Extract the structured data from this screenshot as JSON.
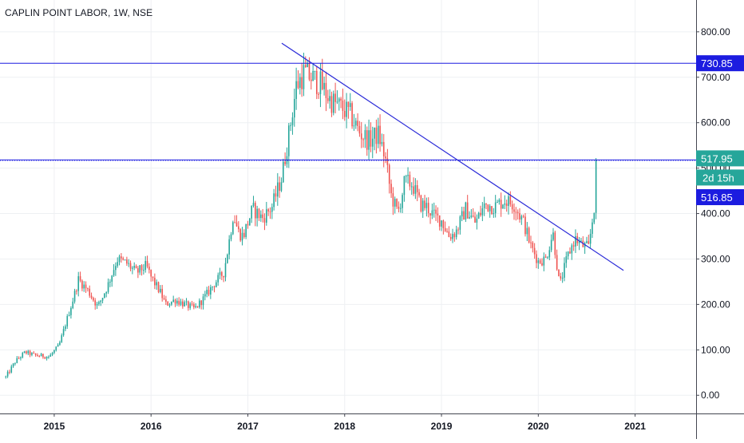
{
  "header": {
    "title": "CAPLIN POINT LABOR, 1W, NSE"
  },
  "colors": {
    "up": "#26a69a",
    "down": "#ef5350",
    "hline": "#1c1ce0",
    "trendline": "#2a2ad8",
    "grid": "#eef0f3",
    "axis_text": "#131722"
  },
  "chart_data": {
    "type": "candlestick",
    "symbol": "CAPLIN POINT LABOR",
    "interval": "1W",
    "exchange": "NSE",
    "x_ticks": [
      "2015",
      "2016",
      "2017",
      "2018",
      "2019",
      "2020",
      "2021"
    ],
    "x_range": [
      2014.44,
      2021.63
    ],
    "y_ticks": [
      "0.00",
      "100.00",
      "200.00",
      "300.00",
      "400.00",
      "500.00",
      "600.00",
      "700.00",
      "800.00"
    ],
    "y_range": [
      -40,
      870
    ],
    "grid": true,
    "anchors": [
      [
        2014.5,
        40
      ],
      [
        2014.6,
        75
      ],
      [
        2014.7,
        95
      ],
      [
        2014.8,
        88
      ],
      [
        2014.95,
        85
      ],
      [
        2015.05,
        110
      ],
      [
        2015.2,
        215
      ],
      [
        2015.25,
        255
      ],
      [
        2015.35,
        230
      ],
      [
        2015.45,
        195
      ],
      [
        2015.55,
        240
      ],
      [
        2015.65,
        300
      ],
      [
        2015.75,
        290
      ],
      [
        2015.85,
        270
      ],
      [
        2015.95,
        285
      ],
      [
        2016.0,
        260
      ],
      [
        2016.1,
        225
      ],
      [
        2016.15,
        200
      ],
      [
        2016.25,
        210
      ],
      [
        2016.35,
        200
      ],
      [
        2016.45,
        190
      ],
      [
        2016.55,
        215
      ],
      [
        2016.65,
        245
      ],
      [
        2016.75,
        270
      ],
      [
        2016.8,
        330
      ],
      [
        2016.85,
        400
      ],
      [
        2016.9,
        360
      ],
      [
        2016.95,
        350
      ],
      [
        2017.05,
        410
      ],
      [
        2017.15,
        390
      ],
      [
        2017.25,
        415
      ],
      [
        2017.35,
        480
      ],
      [
        2017.42,
        570
      ],
      [
        2017.5,
        680
      ],
      [
        2017.58,
        710
      ],
      [
        2017.65,
        700
      ],
      [
        2017.75,
        685
      ],
      [
        2017.85,
        650
      ],
      [
        2017.95,
        635
      ],
      [
        2018.05,
        620
      ],
      [
        2018.15,
        580
      ],
      [
        2018.25,
        560
      ],
      [
        2018.35,
        575
      ],
      [
        2018.42,
        520
      ],
      [
        2018.48,
        440
      ],
      [
        2018.55,
        400
      ],
      [
        2018.62,
        470
      ],
      [
        2018.7,
        465
      ],
      [
        2018.78,
        420
      ],
      [
        2018.85,
        415
      ],
      [
        2018.92,
        395
      ],
      [
        2019.0,
        385
      ],
      [
        2019.08,
        350
      ],
      [
        2019.15,
        360
      ],
      [
        2019.25,
        410
      ],
      [
        2019.35,
        380
      ],
      [
        2019.45,
        420
      ],
      [
        2019.55,
        415
      ],
      [
        2019.65,
        430
      ],
      [
        2019.75,
        420
      ],
      [
        2019.85,
        380
      ],
      [
        2019.92,
        330
      ],
      [
        2020.0,
        295
      ],
      [
        2020.08,
        300
      ],
      [
        2020.15,
        360
      ],
      [
        2020.22,
        240
      ],
      [
        2020.3,
        305
      ],
      [
        2020.38,
        345
      ],
      [
        2020.45,
        330
      ],
      [
        2020.52,
        325
      ],
      [
        2020.58,
        420
      ],
      [
        2020.6,
        485
      ],
      [
        2020.61,
        500
      ]
    ],
    "horizontal_lines": [
      {
        "price": 730.85,
        "label": "730.85",
        "style": "solid"
      },
      {
        "price": 517.95,
        "label": "517.95",
        "style": "solid"
      },
      {
        "price": 516.85,
        "label": "516.85",
        "style": "dotted"
      }
    ],
    "trendline": {
      "start": {
        "x": 2017.35,
        "y": 775
      },
      "end": {
        "x": 2020.88,
        "y": 275
      }
    },
    "last_price": {
      "value": "517.95",
      "countdown": "2d 15h"
    }
  }
}
